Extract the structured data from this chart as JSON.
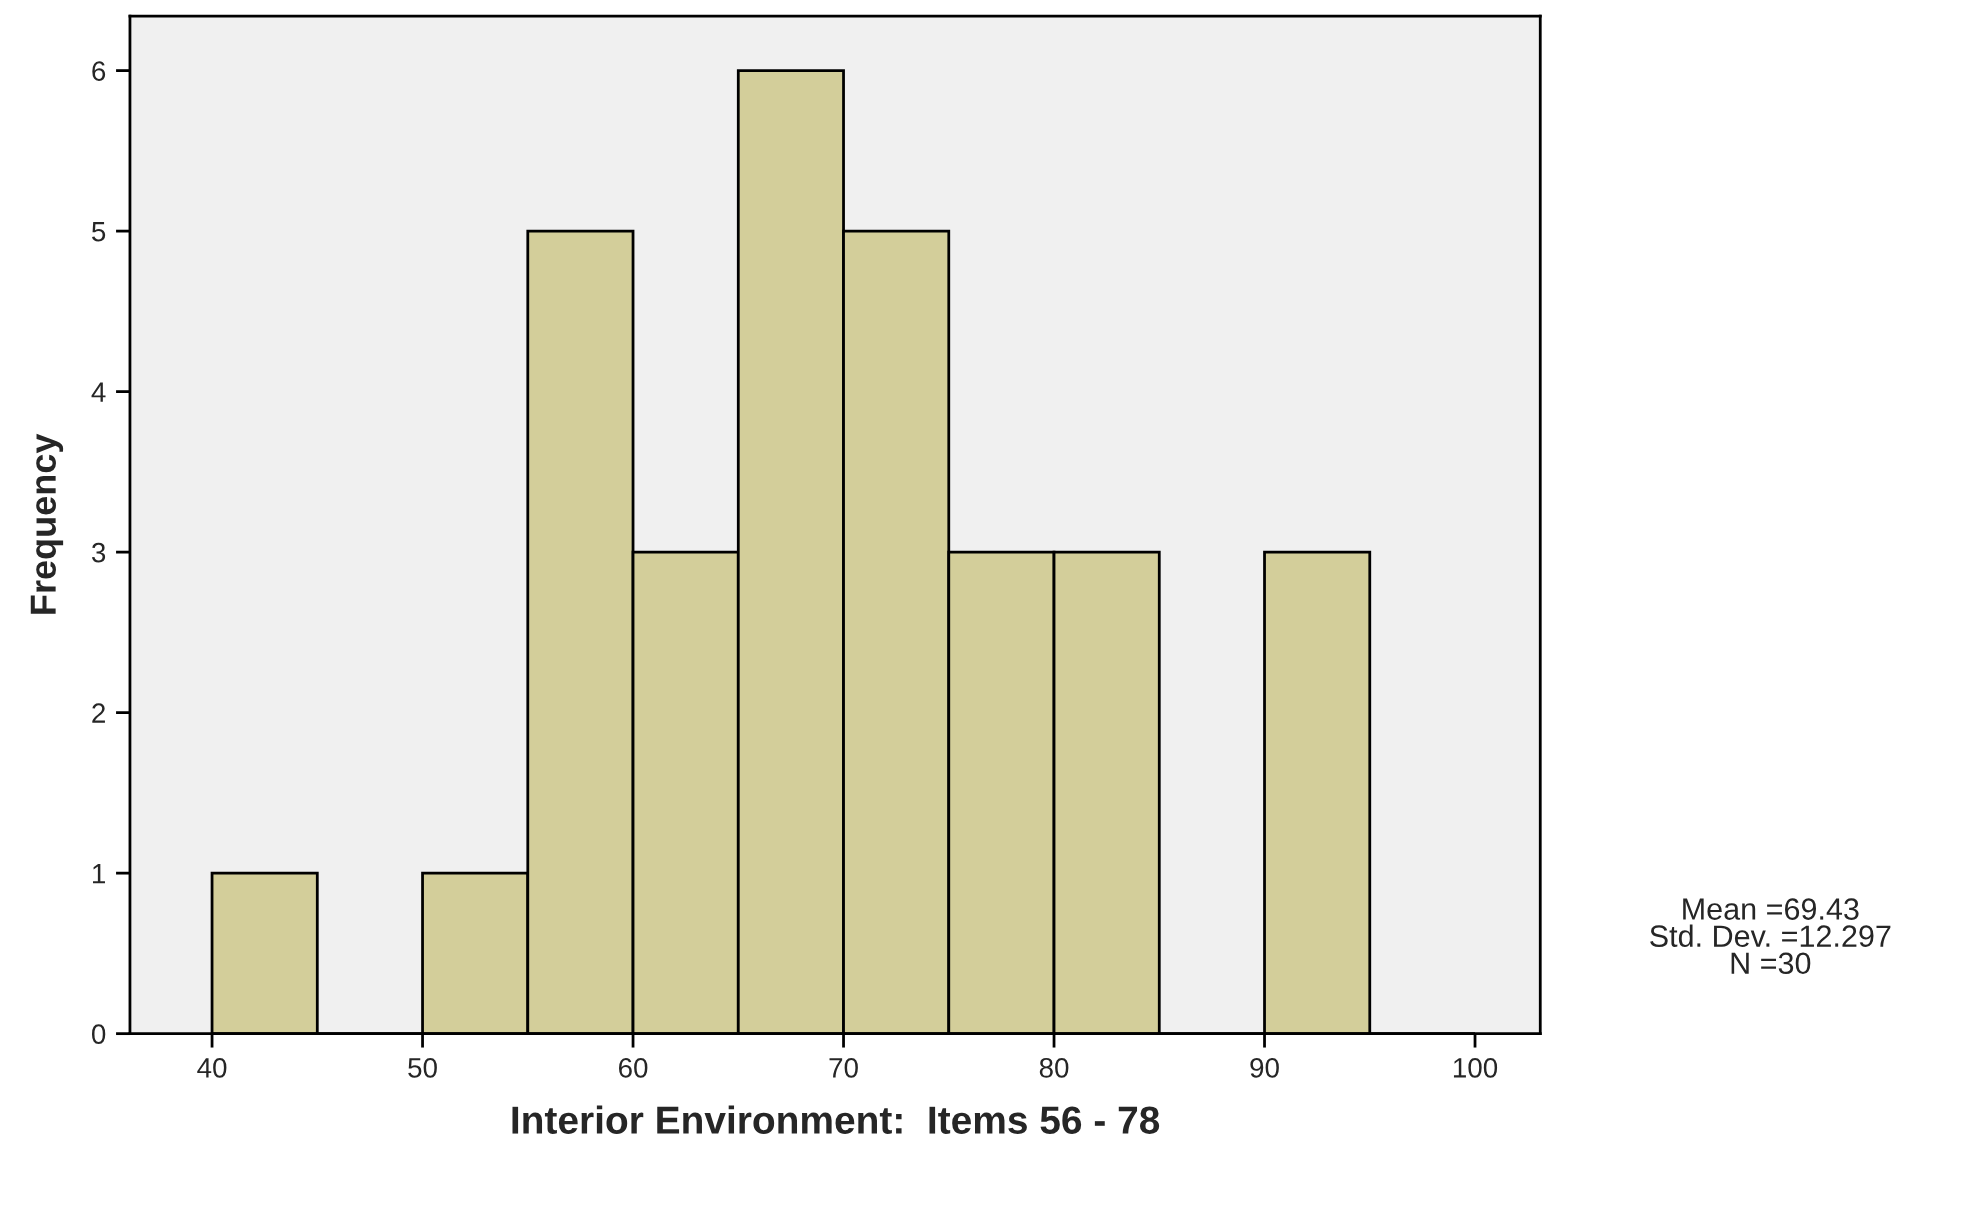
{
  "chart_data": {
    "type": "histogram",
    "xlabel": "Interior Environment:  Items 56 - 78",
    "ylabel": "Frequency",
    "bins": [
      40,
      45,
      50,
      55,
      60,
      65,
      70,
      75,
      80,
      85,
      90,
      95,
      100
    ],
    "values": [
      1,
      0,
      1,
      5,
      3,
      6,
      5,
      3,
      3,
      0,
      3,
      0
    ],
    "color": "#d3ce9a",
    "xlim": [
      36.1,
      103.1
    ],
    "xticks": [
      40,
      50,
      60,
      70,
      80,
      90,
      100
    ],
    "ylim": [
      0,
      6.34
    ],
    "yticks": [
      0,
      1,
      2,
      3,
      4,
      5,
      6
    ],
    "grid": false,
    "annotations": [
      "Mean =69.43",
      "Std. Dev. =12.297",
      "N =30"
    ]
  }
}
